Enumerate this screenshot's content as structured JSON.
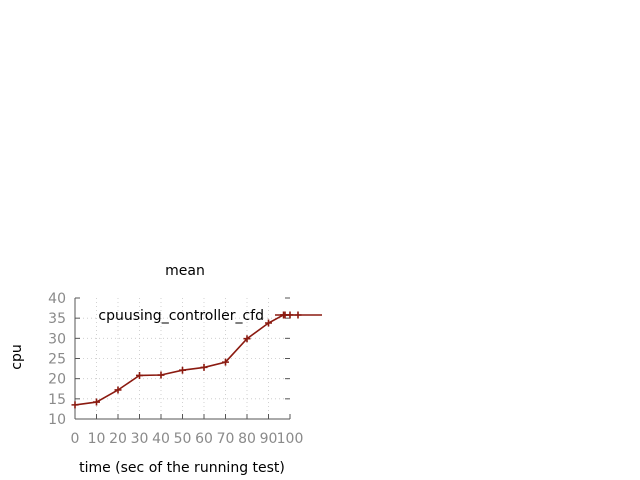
{
  "chart_data": {
    "type": "line",
    "title": "mean",
    "xlabel": "time (sec of the running test)",
    "ylabel": "cpu",
    "xlim": [
      0,
      100
    ],
    "ylim": [
      10,
      40
    ],
    "x_ticks": [
      "0",
      "10",
      "20",
      "30",
      "40",
      "50",
      "60",
      "70",
      "80",
      "90",
      "100"
    ],
    "y_ticks": [
      "10",
      "15",
      "20",
      "25",
      "30",
      "35",
      "40"
    ],
    "grid": true,
    "legend_position": "top-right",
    "series": [
      {
        "name": "cpu_using_controller_cfd",
        "legend_label": "cpuusing_controller_cfd",
        "color": "#8b1a10",
        "marker": "plus",
        "x": [
          0,
          10,
          20,
          30,
          40,
          50,
          60,
          70,
          80,
          90,
          97,
          100
        ],
        "y": [
          13.5,
          14.2,
          17.2,
          20.8,
          20.9,
          22.1,
          22.8,
          24.1,
          29.9,
          33.8,
          35.8,
          35.8
        ]
      }
    ]
  }
}
